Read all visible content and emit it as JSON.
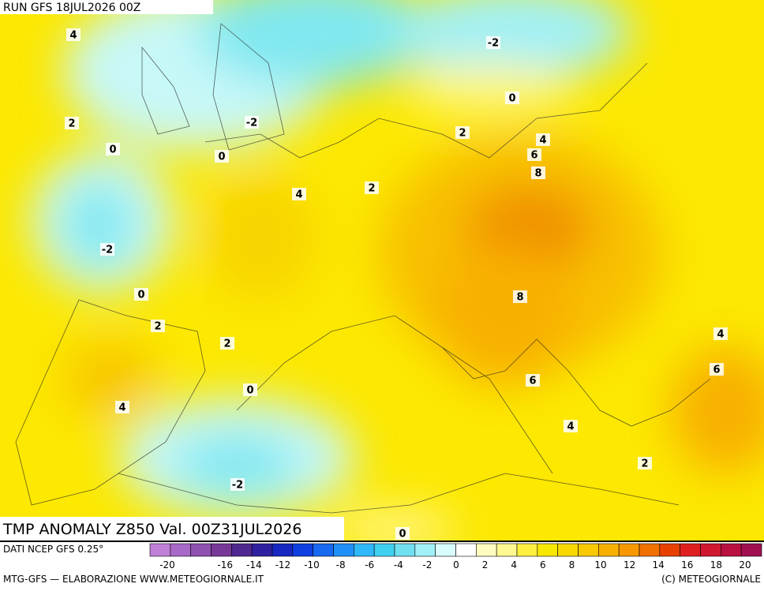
{
  "header": {
    "run": "RUN GFS 18JUL2026 00Z",
    "title": "TMP ANOMALY Z850 Val. 00Z31JUL2026"
  },
  "map": {
    "contour_labels": [
      4,
      -2,
      2,
      -2,
      0,
      0,
      0,
      2,
      4,
      6,
      8,
      4,
      2,
      -2,
      0,
      2,
      2,
      8,
      4,
      6,
      6,
      0,
      4,
      4,
      2,
      -2,
      0
    ]
  },
  "footer": {
    "source": "DATI NCEP GFS 0.25°",
    "credit": "MTG-GFS — ELABORAZIONE WWW.METEOGIORNALE.IT",
    "copyright": "(C) METEOGIORNALE"
  },
  "colorbar": {
    "ticks": [
      -20,
      -16,
      -14,
      -12,
      -10,
      -8,
      -6,
      -4,
      -2,
      0,
      2,
      4,
      6,
      8,
      10,
      12,
      14,
      16,
      18,
      20
    ],
    "colors": [
      "#c080d8",
      "#a868c8",
      "#9050b0",
      "#783898",
      "#502890",
      "#3020a0",
      "#1828c0",
      "#1040e0",
      "#1868f0",
      "#2090f8",
      "#30b8f8",
      "#40d0f0",
      "#70e0f0",
      "#a0f0f8",
      "#d8fcfc",
      "#ffffff",
      "#fffcc0",
      "#fff890",
      "#fff040",
      "#f8e800",
      "#f8d800",
      "#f8c800",
      "#f8b000",
      "#f89800",
      "#f07000",
      "#e84000",
      "#e02020",
      "#d01830",
      "#b81040",
      "#a01050"
    ]
  }
}
